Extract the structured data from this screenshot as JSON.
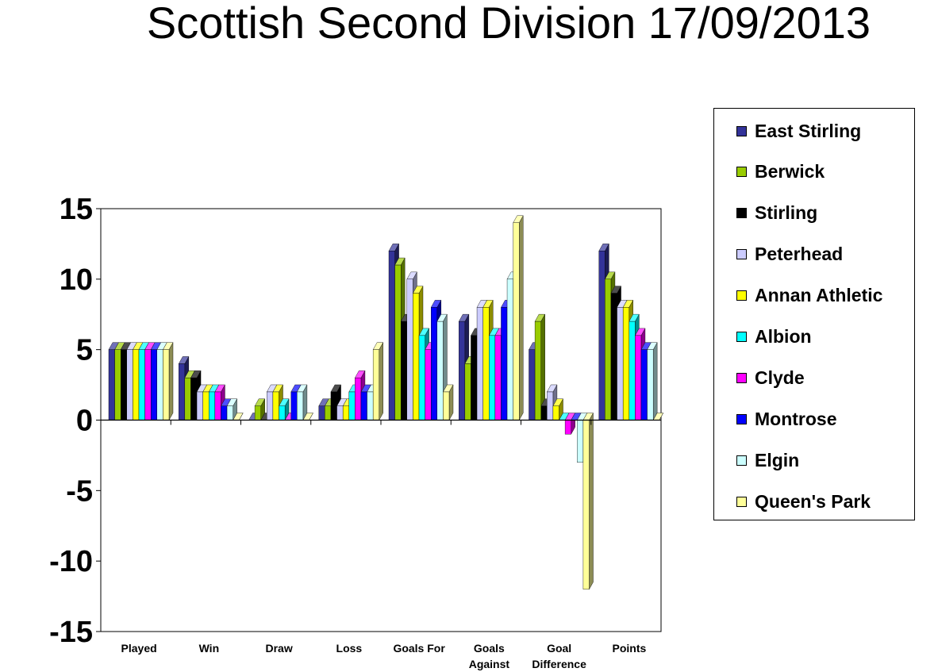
{
  "title": "Scottish Second Division 17/09/2013",
  "chart_data": {
    "type": "bar",
    "title": "Scottish Second Division 17/09/2013",
    "xlabel": "",
    "ylabel": "",
    "ylim": [
      -15,
      15
    ],
    "yticks": [
      "15",
      "10",
      "5",
      "0",
      "-5",
      "-10",
      "-15"
    ],
    "grid": false,
    "legend_position": "right",
    "categories": [
      "Played",
      "Win",
      "Draw",
      "Loss",
      "Goals For",
      "Goals Against",
      "Goal Difference",
      "Points"
    ],
    "category_label_lines": [
      [
        "Played"
      ],
      [
        "Win"
      ],
      [
        "Draw"
      ],
      [
        "Loss"
      ],
      [
        "Goals For"
      ],
      [
        "Goals",
        "Against"
      ],
      [
        "Goal",
        "Difference"
      ],
      [
        "Points"
      ]
    ],
    "series": [
      {
        "name": "East Stirling",
        "color": "#333399",
        "values": [
          5,
          4,
          0,
          1,
          12,
          7,
          5,
          12
        ]
      },
      {
        "name": "Berwick",
        "color": "#99CC00",
        "values": [
          5,
          3,
          1,
          1,
          11,
          4,
          7,
          10
        ]
      },
      {
        "name": "Stirling",
        "color": "#000000",
        "values": [
          5,
          3,
          0,
          2,
          7,
          6,
          1,
          9
        ]
      },
      {
        "name": "Peterhead",
        "color": "#CCCCFF",
        "values": [
          5,
          2,
          2,
          1,
          10,
          8,
          2,
          8
        ]
      },
      {
        "name": "Annan Athletic",
        "color": "#FFFF00",
        "values": [
          5,
          2,
          2,
          1,
          9,
          8,
          1,
          8
        ]
      },
      {
        "name": "Albion",
        "color": "#00FFFF",
        "values": [
          5,
          2,
          1,
          2,
          6,
          6,
          0,
          7
        ]
      },
      {
        "name": "Clyde",
        "color": "#FF00FF",
        "values": [
          5,
          2,
          0,
          3,
          5,
          6,
          -1,
          6
        ]
      },
      {
        "name": "Montrose",
        "color": "#0000FF",
        "values": [
          5,
          1,
          2,
          2,
          8,
          8,
          0,
          5
        ]
      },
      {
        "name": "Elgin",
        "color": "#CCFFFF",
        "values": [
          5,
          1,
          2,
          2,
          7,
          10,
          -3,
          5
        ]
      },
      {
        "name": "Queen's Park",
        "color": "#FFFF99",
        "values": [
          5,
          0,
          0,
          5,
          2,
          14,
          -12,
          0
        ]
      }
    ]
  }
}
